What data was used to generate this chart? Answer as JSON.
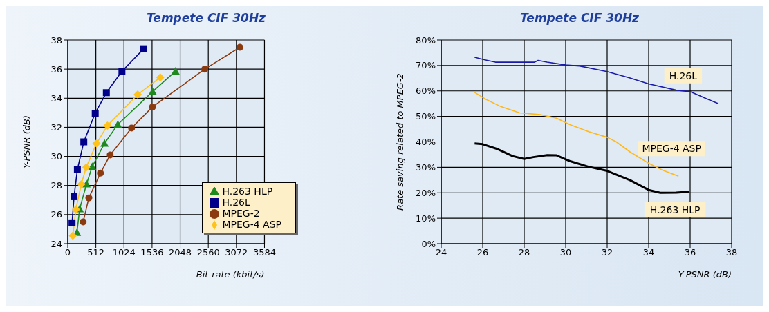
{
  "chart_data": [
    {
      "type": "line",
      "title": "Tempete CIF 30Hz",
      "xlabel": "Bit-rate (kbit/s)",
      "ylabel": "Y-PSNR (dB)",
      "xlim": [
        0,
        3584
      ],
      "xticks": [
        0,
        512,
        1024,
        1536,
        2048,
        2560,
        3072,
        3584
      ],
      "ylim": [
        24,
        38
      ],
      "yticks": [
        24,
        26,
        28,
        30,
        32,
        34,
        36,
        38
      ],
      "grid": true,
      "legend": "bottom right",
      "line_style": "solid",
      "series": [
        {
          "name": "MPEG-2",
          "color": "#8b3a0f",
          "marker": "circle",
          "x": [
            281,
            384,
            595,
            773,
            1162,
            1543,
            2496,
            3136
          ],
          "values": [
            25.5,
            27.15,
            28.85,
            30.1,
            31.95,
            33.4,
            36.0,
            37.5
          ]
        },
        {
          "name": "H.263 HLP",
          "color": "#1e8a1e",
          "marker": "triangle",
          "x": [
            167,
            217,
            342,
            445,
            670,
            912,
            1546,
            1963
          ],
          "values": [
            24.77,
            26.4,
            28.1,
            29.3,
            30.9,
            32.2,
            34.46,
            35.86
          ]
        },
        {
          "name": "MPEG-4 ASP",
          "color": "#ffc21a",
          "marker": "diamond",
          "x": [
            92,
            147,
            245,
            336,
            523,
            723,
            1273,
            1685
          ],
          "values": [
            24.54,
            26.35,
            28.08,
            29.25,
            30.89,
            32.12,
            34.25,
            35.43
          ]
        },
        {
          "name": "H.26L",
          "color": "#00008b",
          "marker": "square",
          "x": [
            78,
            114,
            175,
            292,
            500,
            703,
            987,
            1384
          ],
          "values": [
            25.43,
            27.23,
            29.09,
            31.0,
            32.97,
            34.38,
            35.85,
            37.4
          ]
        }
      ]
    },
    {
      "type": "line",
      "title": "Tempete CIF 30Hz",
      "xlabel": "Y-PSNR (dB)",
      "ylabel": "Rate saving related to MPEG-2",
      "xlim": [
        24,
        38
      ],
      "xticks": [
        24,
        26,
        28,
        30,
        32,
        34,
        36,
        38
      ],
      "ylim": [
        0,
        80
      ],
      "yticks": [
        {
          "value": 0,
          "label": "0%"
        },
        {
          "value": 10,
          "label": "10%"
        },
        {
          "value": 20,
          "label": "20%"
        },
        {
          "value": 30,
          "label": "30%"
        },
        {
          "value": 40,
          "label": "40%"
        },
        {
          "value": 50,
          "label": "50%"
        },
        {
          "value": 60,
          "label": "60%"
        },
        {
          "value": 70,
          "label": "70%"
        },
        {
          "value": 80,
          "label": "80%"
        }
      ],
      "grid": true,
      "legend": false,
      "marker": "none",
      "line_style": "solid",
      "series": [
        {
          "name": "H.26L",
          "color": "#1a1aa8",
          "x": [
            25.61,
            26.11,
            26.61,
            28.5,
            28.67,
            29.1,
            30,
            30.67,
            32,
            33.1,
            34,
            35.33,
            36,
            37.33
          ],
          "values": [
            73.2,
            72.2,
            71.3,
            71.3,
            72.0,
            71.3,
            70.2,
            69.8,
            67.6,
            65.1,
            62.8,
            60.3,
            59.7,
            55.1
          ]
        },
        {
          "name": "MPEG-4 ASP",
          "color": "#ffb81c",
          "x": [
            25.56,
            26.11,
            26.89,
            27.78,
            28.78,
            29.56,
            30.22,
            31.11,
            32,
            32.44,
            33.11,
            34,
            34.67,
            35.44
          ],
          "values": [
            59.7,
            56.9,
            53.8,
            51.4,
            50.7,
            49.3,
            46.7,
            44.0,
            41.8,
            40.0,
            36.0,
            31.6,
            28.9,
            26.5
          ]
        },
        {
          "name": "H.263 HLP",
          "color": "#000000",
          "x": [
            25.61,
            26,
            26.67,
            27.44,
            28,
            28.44,
            29.11,
            29.56,
            30.22,
            31.11,
            32,
            33.11,
            34,
            34.56,
            35.33,
            35.94
          ],
          "values": [
            39.4,
            39.1,
            37.3,
            34.4,
            33.3,
            34.0,
            34.8,
            34.7,
            32.4,
            30.2,
            28.6,
            24.9,
            21.1,
            20.0,
            20.1,
            20.4
          ]
        }
      ]
    }
  ]
}
